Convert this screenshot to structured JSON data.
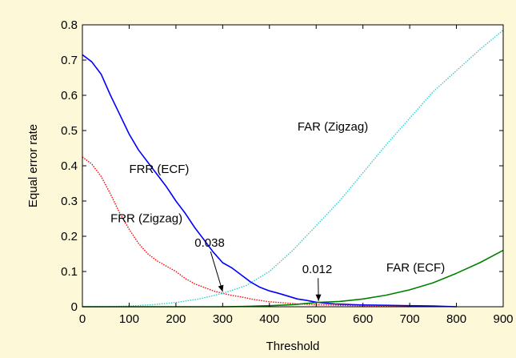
{
  "chart_data": {
    "type": "line",
    "title": "",
    "xlabel": "Threshold",
    "ylabel": "Equal error rate",
    "xlim": [
      0,
      900
    ],
    "ylim": [
      0,
      0.8
    ],
    "xticks": [
      0,
      100,
      200,
      300,
      400,
      500,
      600,
      700,
      800,
      900
    ],
    "yticks": [
      0,
      0.1,
      0.2,
      0.3,
      0.4,
      0.5,
      0.6,
      0.7,
      0.8
    ],
    "grid": false,
    "legend": "none",
    "series": [
      {
        "name": "FRR (ECF)",
        "color": "#0000ff",
        "style": "solid",
        "x": [
          0,
          20,
          40,
          60,
          80,
          100,
          120,
          140,
          160,
          180,
          200,
          220,
          240,
          260,
          280,
          300,
          320,
          340,
          360,
          380,
          400,
          420,
          440,
          460,
          480,
          500,
          520,
          540,
          560,
          580,
          600,
          650,
          700,
          750,
          800
        ],
        "y": [
          0.715,
          0.695,
          0.66,
          0.6,
          0.545,
          0.49,
          0.445,
          0.41,
          0.375,
          0.34,
          0.3,
          0.265,
          0.225,
          0.19,
          0.155,
          0.125,
          0.11,
          0.09,
          0.07,
          0.055,
          0.045,
          0.038,
          0.03,
          0.022,
          0.018,
          0.013,
          0.01,
          0.008,
          0.007,
          0.006,
          0.005,
          0.004,
          0.003,
          0.002,
          0.0
        ]
      },
      {
        "name": "FRR (Zigzag)",
        "color": "#ff0000",
        "style": "dotted",
        "x": [
          0,
          20,
          40,
          60,
          80,
          100,
          120,
          140,
          160,
          180,
          200,
          220,
          240,
          260,
          280,
          300,
          320,
          340,
          360,
          380,
          400,
          420,
          440,
          460,
          480,
          500,
          550,
          600,
          650,
          700
        ],
        "y": [
          0.425,
          0.405,
          0.37,
          0.32,
          0.265,
          0.22,
          0.18,
          0.15,
          0.13,
          0.115,
          0.1,
          0.08,
          0.065,
          0.055,
          0.045,
          0.038,
          0.032,
          0.028,
          0.022,
          0.018,
          0.014,
          0.012,
          0.01,
          0.008,
          0.007,
          0.006,
          0.004,
          0.003,
          0.002,
          0.0
        ]
      },
      {
        "name": "FAR (Zigzag)",
        "color": "#33cccc",
        "style": "dotted",
        "x": [
          0,
          50,
          100,
          150,
          200,
          250,
          300,
          350,
          400,
          450,
          500,
          550,
          600,
          650,
          700,
          750,
          800,
          850,
          900
        ],
        "y": [
          0.0,
          0.0,
          0.002,
          0.006,
          0.012,
          0.022,
          0.038,
          0.06,
          0.1,
          0.16,
          0.23,
          0.3,
          0.38,
          0.46,
          0.535,
          0.61,
          0.67,
          0.73,
          0.785
        ]
      },
      {
        "name": "FAR (ECF)",
        "color": "#008000",
        "style": "solid",
        "x": [
          0,
          100,
          200,
          300,
          350,
          400,
          450,
          500,
          550,
          600,
          650,
          700,
          750,
          800,
          850,
          900
        ],
        "y": [
          0.0,
          0.0,
          0.0,
          0.0,
          0.001,
          0.003,
          0.006,
          0.012,
          0.015,
          0.022,
          0.033,
          0.048,
          0.068,
          0.095,
          0.125,
          0.16
        ]
      }
    ],
    "labels": [
      {
        "text": "FRR (ECF)",
        "x": 100,
        "y": 0.38
      },
      {
        "text": "FRR (Zigzag)",
        "x": 60,
        "y": 0.24
      },
      {
        "text": "FAR (Zigzag)",
        "x": 460,
        "y": 0.5
      },
      {
        "text": "FAR (ECF)",
        "x": 650,
        "y": 0.1
      }
    ],
    "annotations": [
      {
        "text": "0.038",
        "x": 300,
        "y": 0.038,
        "text_x": 240,
        "text_y": 0.17
      },
      {
        "text": "0.012",
        "x": 505,
        "y": 0.012,
        "text_x": 470,
        "text_y": 0.095
      }
    ]
  }
}
